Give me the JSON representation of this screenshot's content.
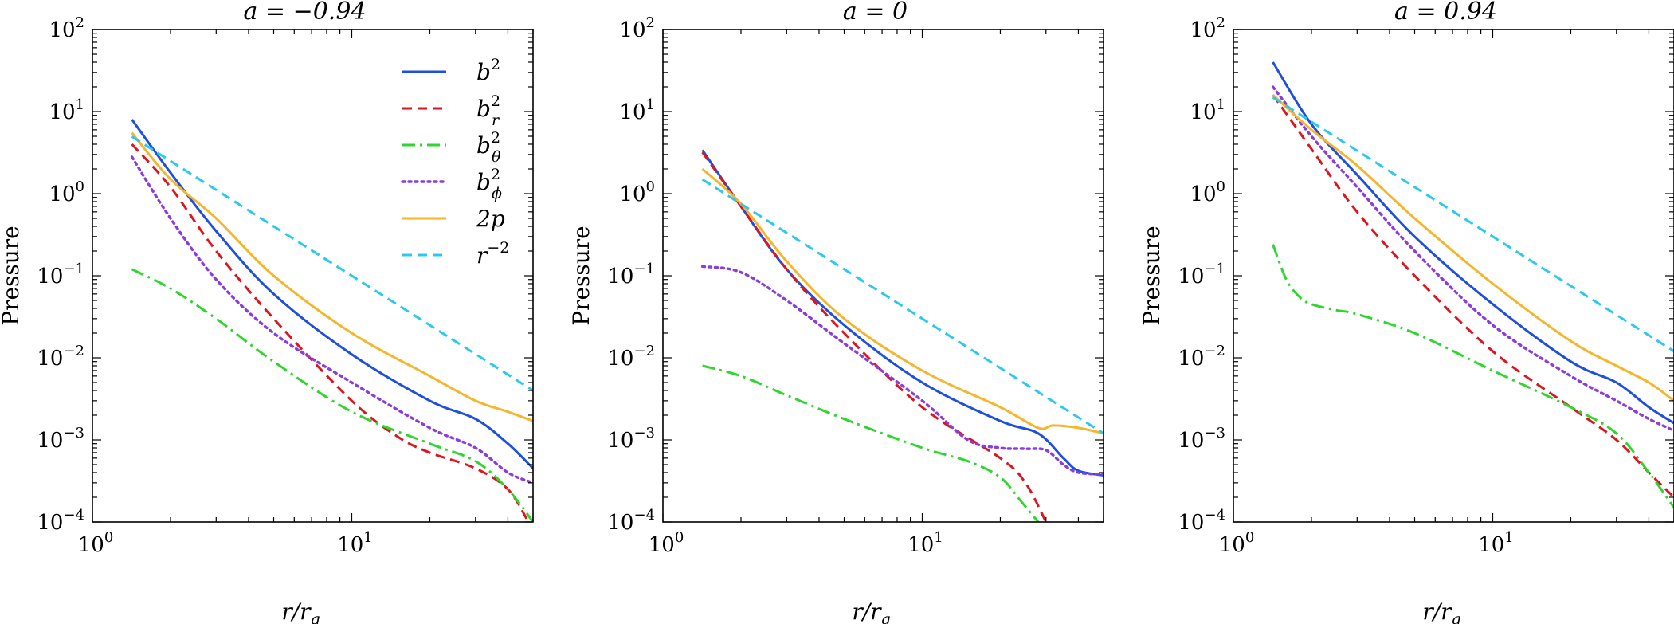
{
  "figure": {
    "series_styles": [
      {
        "key": "b2",
        "color": "#1f4fe0",
        "dash": "",
        "width": 3
      },
      {
        "key": "br2",
        "color": "#e0141e",
        "dash": "12,7",
        "width": 3
      },
      {
        "key": "bth2",
        "color": "#2ed62e",
        "dash": "16,6,3,6",
        "width": 3
      },
      {
        "key": "bph2",
        "color": "#8a3ce0",
        "dash": "3,5",
        "width": 3.4
      },
      {
        "key": "p2",
        "color": "#f7b52c",
        "dash": "",
        "width": 3
      },
      {
        "key": "rm2",
        "color": "#2bc9f0",
        "dash": "12,7",
        "width": 3
      }
    ],
    "legend": {
      "placement": "upper-right of first panel",
      "entries": [
        {
          "key": "b2",
          "base": "b",
          "sup": "2",
          "sub": ""
        },
        {
          "key": "br2",
          "base": "b",
          "sup": "2",
          "sub": "r"
        },
        {
          "key": "bth2",
          "base": "b",
          "sup": "2",
          "sub": "θ"
        },
        {
          "key": "bph2",
          "base": "b",
          "sup": "2",
          "sub": "ϕ"
        },
        {
          "key": "p2",
          "base": "2p",
          "sup": "",
          "sub": ""
        },
        {
          "key": "rm2",
          "base": "r",
          "sup": "−2",
          "sub": ""
        }
      ]
    }
  },
  "chart_data": [
    {
      "type": "line",
      "title": "a = −0.94",
      "xlabel": "r/r_g",
      "ylabel": "Pressure",
      "xscale": "log",
      "yscale": "log",
      "xlim": [
        1,
        50
      ],
      "ylim": [
        0.0001,
        100
      ],
      "x_ticks": [
        {
          "value": 1,
          "base": "10",
          "exp": "0"
        },
        {
          "value": 10,
          "base": "10",
          "exp": "1"
        }
      ],
      "y_ticks": [
        {
          "value": 0.0001,
          "base": "10",
          "exp": "−4"
        },
        {
          "value": 0.001,
          "base": "10",
          "exp": "−3"
        },
        {
          "value": 0.01,
          "base": "10",
          "exp": "−2"
        },
        {
          "value": 0.1,
          "base": "10",
          "exp": "−1"
        },
        {
          "value": 1,
          "base": "10",
          "exp": "0"
        },
        {
          "value": 10,
          "base": "10",
          "exp": "1"
        },
        {
          "value": 100,
          "base": "10",
          "exp": "2"
        }
      ],
      "series": [
        {
          "key": "b2",
          "name": "b^2",
          "x": [
            1.42,
            2,
            3,
            5,
            10,
            20,
            30,
            40,
            50
          ],
          "y": [
            8.0,
            1.8,
            0.35,
            0.06,
            0.011,
            0.003,
            0.0018,
            0.0009,
            0.00045
          ]
        },
        {
          "key": "br2",
          "name": "b_r^2",
          "x": [
            1.42,
            2,
            3,
            5,
            10,
            15,
            20,
            30,
            40,
            48
          ],
          "y": [
            4.0,
            1.2,
            0.2,
            0.03,
            0.003,
            0.0011,
            0.0007,
            0.00045,
            0.00025,
            0.0001
          ]
        },
        {
          "key": "bth2",
          "name": "b_θ^2",
          "x": [
            1.42,
            2,
            3,
            5,
            10,
            20,
            30,
            40,
            50
          ],
          "y": [
            0.12,
            0.07,
            0.03,
            0.009,
            0.0022,
            0.0009,
            0.00055,
            0.00025,
            0.0001
          ]
        },
        {
          "key": "bph2",
          "name": "b_ϕ^2",
          "x": [
            1.42,
            2,
            3,
            5,
            10,
            20,
            30,
            40,
            50
          ],
          "y": [
            2.8,
            0.5,
            0.09,
            0.02,
            0.005,
            0.0014,
            0.0008,
            0.0004,
            0.0003
          ]
        },
        {
          "key": "p2",
          "name": "2p",
          "x": [
            1.42,
            2,
            3,
            5,
            10,
            20,
            30,
            40,
            50
          ],
          "y": [
            5.5,
            1.5,
            0.5,
            0.1,
            0.02,
            0.006,
            0.003,
            0.0022,
            0.0017
          ]
        },
        {
          "key": "rm2",
          "name": "r^-2",
          "x": [
            1.42,
            50
          ],
          "y": [
            4.96,
            0.004
          ]
        }
      ]
    },
    {
      "type": "line",
      "title": "a = 0",
      "xlabel": "r/r_g",
      "ylabel": "Pressure",
      "xscale": "log",
      "yscale": "log",
      "xlim": [
        1,
        50
      ],
      "ylim": [
        0.0001,
        100
      ],
      "x_ticks": [
        {
          "value": 1,
          "base": "10",
          "exp": "0"
        },
        {
          "value": 10,
          "base": "10",
          "exp": "1"
        }
      ],
      "y_ticks": [
        {
          "value": 0.0001,
          "base": "10",
          "exp": "−4"
        },
        {
          "value": 0.001,
          "base": "10",
          "exp": "−3"
        },
        {
          "value": 0.01,
          "base": "10",
          "exp": "−2"
        },
        {
          "value": 0.1,
          "base": "10",
          "exp": "−1"
        },
        {
          "value": 1,
          "base": "10",
          "exp": "0"
        },
        {
          "value": 10,
          "base": "10",
          "exp": "1"
        },
        {
          "value": 100,
          "base": "10",
          "exp": "2"
        }
      ],
      "series": [
        {
          "key": "b2",
          "name": "b^2",
          "x": [
            1.42,
            2,
            3,
            5,
            10,
            20,
            28,
            35,
            40,
            50
          ],
          "y": [
            3.4,
            0.7,
            0.12,
            0.025,
            0.005,
            0.0017,
            0.0012,
            0.0006,
            0.00042,
            0.00037
          ]
        },
        {
          "key": "br2",
          "name": "b_r^2",
          "x": [
            1.42,
            2,
            3,
            5,
            10,
            20,
            25,
            30
          ],
          "y": [
            3.2,
            0.7,
            0.12,
            0.02,
            0.0025,
            0.0006,
            0.0003,
            0.0001
          ]
        },
        {
          "key": "bth2",
          "name": "b_θ^2",
          "x": [
            1.42,
            2,
            3,
            5,
            10,
            15,
            20,
            24,
            28
          ],
          "y": [
            0.008,
            0.006,
            0.0035,
            0.0018,
            0.0008,
            0.00055,
            0.00035,
            0.00018,
            0.0001
          ]
        },
        {
          "key": "bph2",
          "name": "b_ϕ^2",
          "x": [
            1.42,
            2,
            3,
            5,
            10,
            15,
            20,
            25,
            30,
            35,
            40,
            50
          ],
          "y": [
            0.13,
            0.11,
            0.05,
            0.015,
            0.003,
            0.001,
            0.0008,
            0.00078,
            0.00075,
            0.0005,
            0.0004,
            0.00038
          ]
        },
        {
          "key": "p2",
          "name": "2p",
          "x": [
            1.42,
            2,
            3,
            5,
            10,
            20,
            28,
            32,
            40,
            50
          ],
          "y": [
            2.0,
            0.75,
            0.15,
            0.03,
            0.007,
            0.0025,
            0.0014,
            0.0015,
            0.0014,
            0.0012
          ]
        },
        {
          "key": "rm2",
          "name": "r^-2",
          "x": [
            1.42,
            50
          ],
          "y": [
            1.49,
            0.0012
          ]
        }
      ]
    },
    {
      "type": "line",
      "title": "a = 0.94",
      "xlabel": "r/r_g",
      "ylabel": "Pressure",
      "xscale": "log",
      "yscale": "log",
      "xlim": [
        1,
        50
      ],
      "ylim": [
        0.0001,
        100
      ],
      "x_ticks": [
        {
          "value": 1,
          "base": "10",
          "exp": "0"
        },
        {
          "value": 10,
          "base": "10",
          "exp": "1"
        }
      ],
      "y_ticks": [
        {
          "value": 0.0001,
          "base": "10",
          "exp": "−4"
        },
        {
          "value": 0.001,
          "base": "10",
          "exp": "−3"
        },
        {
          "value": 0.01,
          "base": "10",
          "exp": "−2"
        },
        {
          "value": 0.1,
          "base": "10",
          "exp": "−1"
        },
        {
          "value": 1,
          "base": "10",
          "exp": "0"
        },
        {
          "value": 10,
          "base": "10",
          "exp": "1"
        },
        {
          "value": 100,
          "base": "10",
          "exp": "2"
        }
      ],
      "series": [
        {
          "key": "b2",
          "name": "b^2",
          "x": [
            1.42,
            2,
            3,
            5,
            10,
            20,
            30,
            40,
            50
          ],
          "y": [
            40,
            7,
            1.7,
            0.3,
            0.045,
            0.009,
            0.005,
            0.0025,
            0.0016
          ]
        },
        {
          "key": "br2",
          "name": "b_r^2",
          "x": [
            1.42,
            2,
            3,
            5,
            10,
            20,
            30,
            40,
            50
          ],
          "y": [
            16,
            3.5,
            0.6,
            0.1,
            0.012,
            0.0025,
            0.001,
            0.0004,
            0.0002
          ]
        },
        {
          "key": "bth2",
          "name": "b_θ^2",
          "x": [
            1.42,
            1.6,
            1.8,
            2,
            2.5,
            3,
            5,
            10,
            20,
            30,
            40,
            50
          ],
          "y": [
            0.24,
            0.09,
            0.055,
            0.045,
            0.038,
            0.034,
            0.02,
            0.007,
            0.0025,
            0.0012,
            0.0004,
            0.00015
          ]
        },
        {
          "key": "bph2",
          "name": "b_ϕ^2",
          "x": [
            1.42,
            2,
            3,
            5,
            10,
            20,
            30,
            40,
            50
          ],
          "y": [
            20,
            5,
            1.2,
            0.2,
            0.025,
            0.006,
            0.003,
            0.0018,
            0.0013
          ]
        },
        {
          "key": "p2",
          "name": "2p",
          "x": [
            1.42,
            2,
            3,
            5,
            10,
            20,
            30,
            40,
            50
          ],
          "y": [
            16,
            6,
            2.2,
            0.5,
            0.08,
            0.016,
            0.008,
            0.005,
            0.003
          ]
        },
        {
          "key": "rm2",
          "name": "r^-2",
          "x": [
            1.42,
            50
          ],
          "y": [
            14.9,
            0.012
          ]
        }
      ]
    }
  ]
}
